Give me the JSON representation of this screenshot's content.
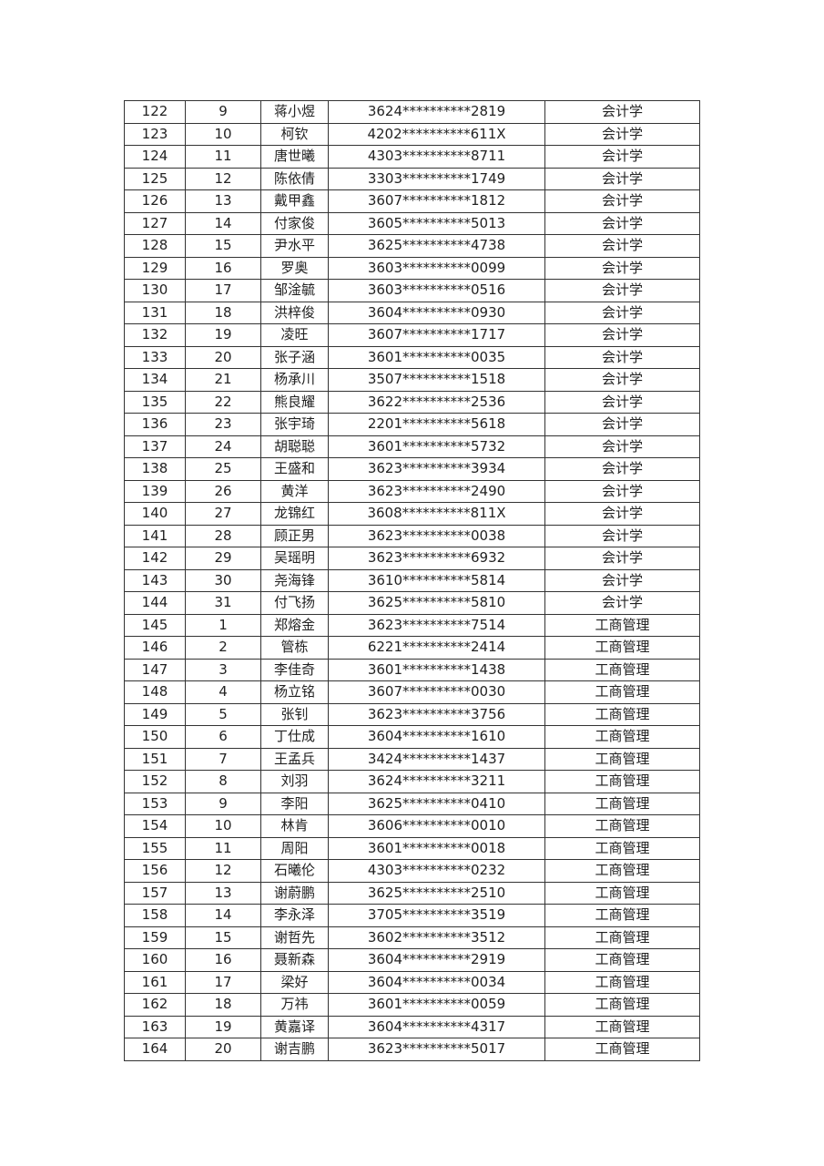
{
  "table": {
    "rows": [
      [
        "122",
        "9",
        "蒋小煜",
        "3624**********2819",
        "会计学"
      ],
      [
        "123",
        "10",
        "柯钦",
        "4202**********611X",
        "会计学"
      ],
      [
        "124",
        "11",
        "唐世曦",
        "4303**********8711",
        "会计学"
      ],
      [
        "125",
        "12",
        "陈依倩",
        "3303**********1749",
        "会计学"
      ],
      [
        "126",
        "13",
        "戴甲鑫",
        "3607**********1812",
        "会计学"
      ],
      [
        "127",
        "14",
        "付家俊",
        "3605**********5013",
        "会计学"
      ],
      [
        "128",
        "15",
        "尹水平",
        "3625**********4738",
        "会计学"
      ],
      [
        "129",
        "16",
        "罗奥",
        "3603**********0099",
        "会计学"
      ],
      [
        "130",
        "17",
        "邹淦毓",
        "3603**********0516",
        "会计学"
      ],
      [
        "131",
        "18",
        "洪梓俊",
        "3604**********0930",
        "会计学"
      ],
      [
        "132",
        "19",
        "凌旺",
        "3607**********1717",
        "会计学"
      ],
      [
        "133",
        "20",
        "张子涵",
        "3601**********0035",
        "会计学"
      ],
      [
        "134",
        "21",
        "杨承川",
        "3507**********1518",
        "会计学"
      ],
      [
        "135",
        "22",
        "熊良耀",
        "3622**********2536",
        "会计学"
      ],
      [
        "136",
        "23",
        "张宇琦",
        "2201**********5618",
        "会计学"
      ],
      [
        "137",
        "24",
        "胡聪聪",
        "3601**********5732",
        "会计学"
      ],
      [
        "138",
        "25",
        "王盛和",
        "3623**********3934",
        "会计学"
      ],
      [
        "139",
        "26",
        "黄洋",
        "3623**********2490",
        "会计学"
      ],
      [
        "140",
        "27",
        "龙锦红",
        "3608**********811X",
        "会计学"
      ],
      [
        "141",
        "28",
        "顾正男",
        "3623**********0038",
        "会计学"
      ],
      [
        "142",
        "29",
        "吴瑶明",
        "3623**********6932",
        "会计学"
      ],
      [
        "143",
        "30",
        "尧海锋",
        "3610**********5814",
        "会计学"
      ],
      [
        "144",
        "31",
        "付飞扬",
        "3625**********5810",
        "会计学"
      ],
      [
        "145",
        "1",
        "郑熔金",
        "3623**********7514",
        "工商管理"
      ],
      [
        "146",
        "2",
        "管栋",
        "6221**********2414",
        "工商管理"
      ],
      [
        "147",
        "3",
        "李佳奇",
        "3601**********1438",
        "工商管理"
      ],
      [
        "148",
        "4",
        "杨立铭",
        "3607**********0030",
        "工商管理"
      ],
      [
        "149",
        "5",
        "张钊",
        "3623**********3756",
        "工商管理"
      ],
      [
        "150",
        "6",
        "丁仕成",
        "3604**********1610",
        "工商管理"
      ],
      [
        "151",
        "7",
        "王孟兵",
        "3424**********1437",
        "工商管理"
      ],
      [
        "152",
        "8",
        "刘羽",
        "3624**********3211",
        "工商管理"
      ],
      [
        "153",
        "9",
        "李阳",
        "3625**********0410",
        "工商管理"
      ],
      [
        "154",
        "10",
        "林肯",
        "3606**********0010",
        "工商管理"
      ],
      [
        "155",
        "11",
        "周阳",
        "3601**********0018",
        "工商管理"
      ],
      [
        "156",
        "12",
        "石曦伦",
        "4303**********0232",
        "工商管理"
      ],
      [
        "157",
        "13",
        "谢蔚鹏",
        "3625**********2510",
        "工商管理"
      ],
      [
        "158",
        "14",
        "李永泽",
        "3705**********3519",
        "工商管理"
      ],
      [
        "159",
        "15",
        "谢哲先",
        "3602**********3512",
        "工商管理"
      ],
      [
        "160",
        "16",
        "聂新森",
        "3604**********2919",
        "工商管理"
      ],
      [
        "161",
        "17",
        "梁好",
        "3604**********0034",
        "工商管理"
      ],
      [
        "162",
        "18",
        "万祎",
        "3601**********0059",
        "工商管理"
      ],
      [
        "163",
        "19",
        "黄嘉译",
        "3604**********4317",
        "工商管理"
      ],
      [
        "164",
        "20",
        "谢吉鹏",
        "3623**********5017",
        "工商管理"
      ]
    ]
  }
}
